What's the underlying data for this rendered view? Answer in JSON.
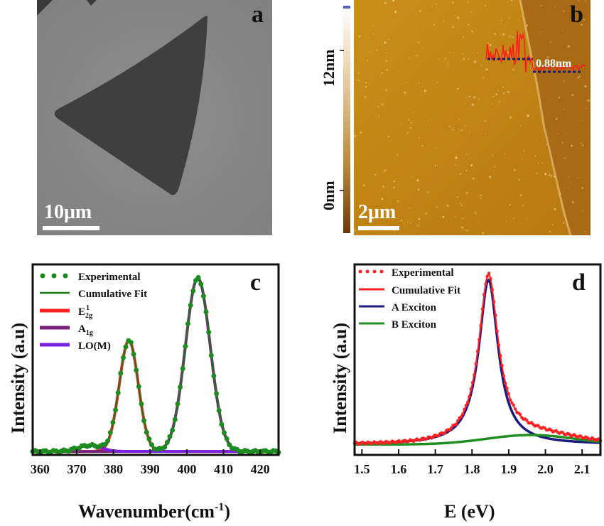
{
  "panels": {
    "a": {
      "label": "a",
      "scale_bar": "10μm"
    },
    "b": {
      "label": "b",
      "scale_bar": "2μm",
      "colorbar_top": "12nm",
      "colorbar_bottom": "0nm",
      "step_height": "0.88nm"
    },
    "c": {
      "label": "c"
    },
    "d": {
      "label": "d"
    }
  },
  "chart_data": [
    {
      "panel": "c",
      "type": "line",
      "xlabel": "Wavenumber(cm⁻¹)",
      "ylabel": "Intensity (a.u)",
      "xlim": [
        358,
        425
      ],
      "ylim": [
        0,
        1.1
      ],
      "xticks": [
        "360",
        "370",
        "380",
        "390",
        "400",
        "410",
        "420"
      ],
      "legend": [
        "Experimental",
        "Cumulative Fit",
        "E",
        "A",
        "LO(M)"
      ],
      "legend_sub": {
        "E_sub": "2g",
        "E_sup": "1",
        "A_sub": "1g"
      },
      "series": [
        {
          "name": "E2g1",
          "center": 384.2,
          "amplitude": 0.64,
          "width": 2.6,
          "color": "#ff2020"
        },
        {
          "name": "A1g",
          "center": 403.0,
          "amplitude": 1.0,
          "width": 3.4,
          "color": "#7a1f7a"
        },
        {
          "name": "LO(M)",
          "center": 373.5,
          "amplitude": 0.035,
          "width": 3.2,
          "color": "#7b1fe0"
        }
      ],
      "colors": {
        "experimental": "#1e8b1e",
        "cumulative": "#1a7a1a"
      }
    },
    {
      "panel": "d",
      "type": "line",
      "xlabel": "E (eV)",
      "ylabel": "Intensity (a.u)",
      "xlim": [
        1.48,
        2.15
      ],
      "ylim": [
        0,
        1.1
      ],
      "xticks": [
        "1.5",
        "1.6",
        "1.7",
        "1.8",
        "1.9",
        "2.0",
        "2.1"
      ],
      "legend": [
        "Experimental",
        "Cumulative Fit",
        "A Exciton",
        "B Exciton"
      ],
      "series": [
        {
          "name": "A Exciton",
          "center": 1.845,
          "amplitude": 0.95,
          "width": 0.032,
          "color": "#1a1a80"
        },
        {
          "name": "B Exciton",
          "center": 1.96,
          "amplitude": 0.055,
          "width": 0.12,
          "color": "#1f8f1f"
        }
      ],
      "colors": {
        "experimental": "#ff2020",
        "cumulative": "#ff2020"
      }
    }
  ]
}
